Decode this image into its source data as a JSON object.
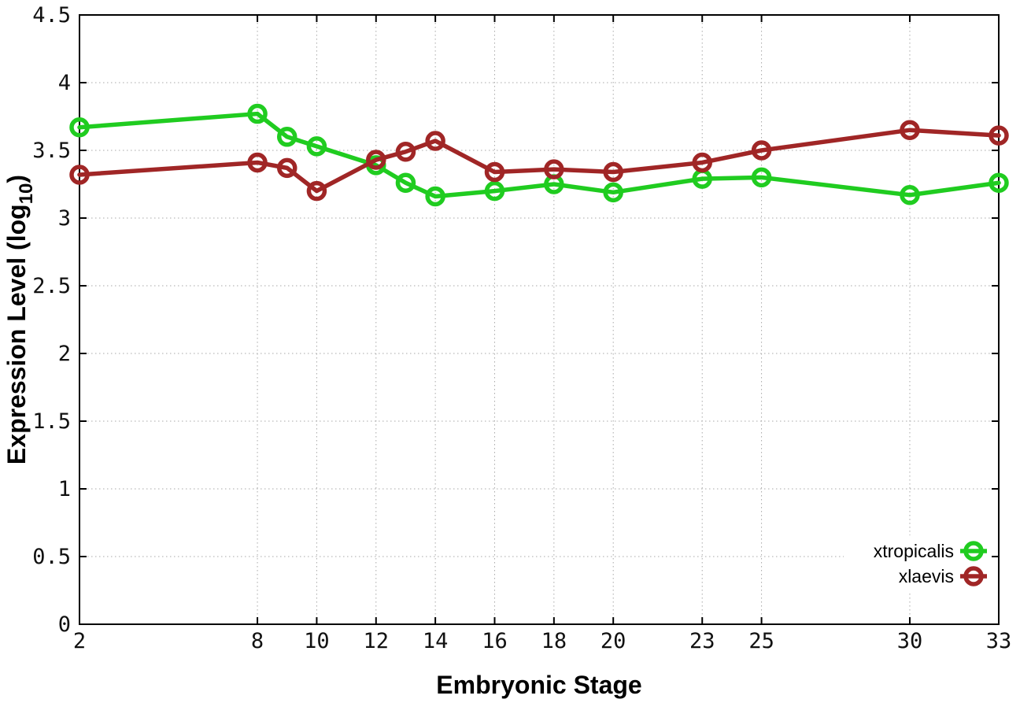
{
  "chart_data": {
    "type": "line",
    "title": "",
    "xlabel": "Embryonic Stage",
    "ylabel": {
      "text": "Expression Level (log",
      "sub": "10",
      "suffix": ")"
    },
    "xlim": [
      2,
      33
    ],
    "ylim": [
      0,
      4.5
    ],
    "xticks": [
      2,
      8,
      10,
      12,
      14,
      16,
      18,
      20,
      23,
      25,
      30,
      33
    ],
    "xtick_labels": [
      "2",
      "8",
      "10",
      "12",
      "14",
      "16",
      "18",
      "20",
      "23",
      "25",
      "30",
      "33"
    ],
    "yticks": [
      0,
      0.5,
      1,
      1.5,
      2,
      2.5,
      3,
      3.5,
      4,
      4.5
    ],
    "ytick_labels": [
      "0",
      "0.5",
      "1",
      "1.5",
      "2",
      "2.5",
      "3",
      "3.5",
      "4",
      "4.5"
    ],
    "grid": true,
    "grid_style": "dotted",
    "legend_position": "bottom-right",
    "marker": "open-circle",
    "x": [
      2,
      8,
      9,
      10,
      12,
      13,
      14,
      16,
      18,
      20,
      23,
      25,
      30,
      33
    ],
    "series": [
      {
        "name": "xtropicalis",
        "color": "#20cc20",
        "values": [
          3.67,
          3.77,
          3.6,
          3.53,
          3.39,
          3.26,
          3.16,
          3.2,
          3.25,
          3.19,
          3.29,
          3.3,
          3.17,
          3.26
        ]
      },
      {
        "name": "xlaevis",
        "color": "#a02626",
        "values": [
          3.32,
          3.41,
          3.37,
          3.2,
          3.43,
          3.49,
          3.57,
          3.34,
          3.36,
          3.34,
          3.41,
          3.5,
          3.65,
          3.61
        ]
      }
    ],
    "axis_color": "#000000",
    "grid_color": "#a8a8a8",
    "background_color": "#ffffff"
  }
}
